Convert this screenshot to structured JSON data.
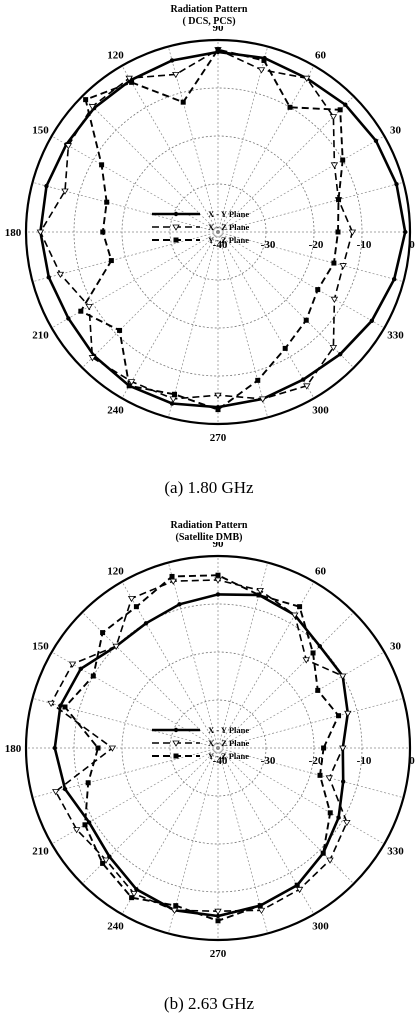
{
  "chart_data": [
    {
      "type": "polar-line",
      "title": "Radiation Pattern",
      "subtitle": "( DCS, PCS)",
      "caption": "(a) 1.80 GHz",
      "angle_ticks": [
        "0",
        "30",
        "60",
        "90",
        "120",
        "150",
        "180",
        "210",
        "240",
        "270",
        "300",
        "330"
      ],
      "radial_ticks": [
        "-40",
        "-30",
        "-20",
        "-10",
        "0"
      ],
      "radial_range": [
        -40,
        0
      ],
      "legend_position": "center",
      "series": [
        {
          "name": "X - Y Plane",
          "style": "solid-dot",
          "angles": [
            0,
            15,
            30,
            45,
            60,
            75,
            90,
            105,
            120,
            135,
            150,
            165,
            180,
            195,
            210,
            225,
            240,
            255,
            270,
            285,
            300,
            315,
            330,
            345
          ],
          "values": [
            -1,
            -1.5,
            -2,
            -2.5,
            -3,
            -2.5,
            -2.5,
            -3,
            -3.5,
            -3.5,
            -3.5,
            -3,
            -3,
            -3.5,
            -4,
            -3.5,
            -3,
            -3,
            -3.5,
            -4,
            -4.5,
            -4,
            -3,
            -2
          ]
        },
        {
          "name": "X - Z Plane",
          "style": "dash-triangle",
          "angles": [
            0,
            15,
            30,
            45,
            60,
            75,
            90,
            105,
            120,
            135,
            150,
            165,
            180,
            195,
            210,
            225,
            240,
            255,
            270,
            285,
            300,
            315,
            330,
            345
          ],
          "values": [
            -12,
            -14,
            -12,
            -6,
            -3,
            -5,
            -2,
            -6,
            -3,
            -3,
            -4,
            -7,
            -3,
            -6,
            -9,
            -3,
            -4,
            -4,
            -6,
            -4,
            -3,
            -6,
            -12,
            -13
          ]
        },
        {
          "name": "Y - Z Plane",
          "style": "dash-square",
          "angles": [
            0,
            15,
            30,
            45,
            60,
            75,
            90,
            105,
            120,
            135,
            150,
            165,
            180,
            195,
            210,
            225,
            240,
            255,
            270,
            285,
            300,
            315,
            330,
            345
          ],
          "values": [
            -15,
            -14,
            -10,
            -4,
            -10,
            -3,
            -2,
            -12,
            -4,
            -1,
            -12,
            -16,
            -16,
            -17,
            -7,
            -11,
            -3,
            -5,
            -3,
            -8,
            -12,
            -14,
            -16,
            -15
          ]
        }
      ]
    },
    {
      "type": "polar-line",
      "title": "Radiation Pattern",
      "subtitle": "(Satellite DMB)",
      "caption": "(b) 2.63 GHz",
      "angle_ticks": [
        "0",
        "30",
        "60",
        "90",
        "120",
        "150",
        "180",
        "210",
        "240",
        "270",
        "300",
        "330"
      ],
      "radial_ticks": [
        "-40",
        "-30",
        "-20",
        "-10",
        "0"
      ],
      "radial_range": [
        -40,
        0
      ],
      "legend_position": "center",
      "series": [
        {
          "name": "X - Y Plane",
          "style": "solid-dot",
          "angles": [
            0,
            15,
            30,
            45,
            60,
            75,
            90,
            105,
            120,
            135,
            150,
            165,
            180,
            195,
            210,
            225,
            240,
            255,
            270,
            285,
            300,
            315,
            330,
            345
          ],
          "values": [
            -14,
            -12,
            -10,
            -10,
            -8,
            -7,
            -8,
            -9,
            -10,
            -10,
            -7,
            -6,
            -6,
            -7,
            -9,
            -8,
            -6,
            -5,
            -5,
            -6,
            -7,
            -9,
            -11,
            -13
          ]
        },
        {
          "name": "X - Z Plane",
          "style": "dash-triangle",
          "angles": [
            0,
            15,
            30,
            45,
            60,
            75,
            90,
            105,
            120,
            135,
            150,
            165,
            180,
            195,
            210,
            225,
            240,
            255,
            270,
            285,
            300,
            315,
            330,
            345
          ],
          "values": [
            -14,
            -12,
            -10,
            -14,
            -8,
            -6,
            -5,
            -4,
            -4,
            -10,
            -5,
            -4,
            -18,
            -5,
            -6,
            -7,
            -5,
            -5,
            -6,
            -5,
            -6,
            -7,
            -9,
            -16
          ]
        },
        {
          "name": "Y - Z Plane",
          "style": "dash-square",
          "angles": [
            0,
            15,
            30,
            45,
            60,
            75,
            90,
            105,
            120,
            135,
            150,
            165,
            180,
            195,
            210,
            225,
            240,
            255,
            270,
            285,
            300,
            315,
            330,
            345
          ],
          "values": [
            -18,
            -14,
            -16,
            -12,
            -6,
            -7,
            -4,
            -3,
            -6,
            -6,
            -10,
            -7,
            -15,
            -12,
            -8,
            -6,
            -4,
            -6,
            -4,
            -6,
            -7,
            -9,
            -13,
            -18
          ]
        }
      ]
    }
  ]
}
